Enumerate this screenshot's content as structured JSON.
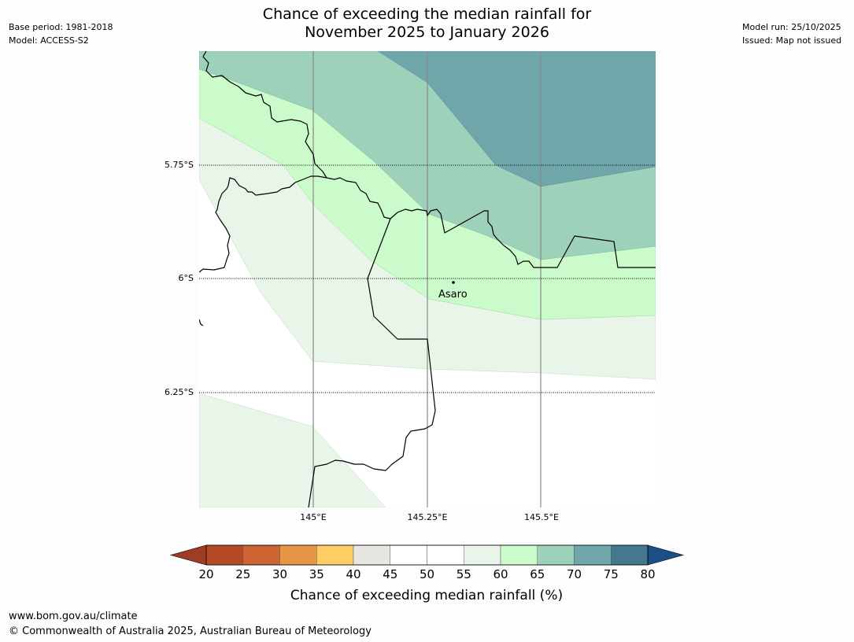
{
  "header": {
    "title_line1": "Chance of exceeding the median rainfall for",
    "title_line2": "November 2025 to January 2026",
    "base_period": "Base period: 1981-2018",
    "model": "Model: ACCESS-S2",
    "model_run": "Model run: 25/10/2025",
    "issued": "Issued: Map not issued"
  },
  "map": {
    "lat_labels": [
      "5.75°S",
      "6°S",
      "6.25°S"
    ],
    "lon_labels": [
      "145°E",
      "145.25°E",
      "145.5°E"
    ],
    "place_name": "Asaro",
    "zone_colors": {
      "55-60": "#e9f5e9",
      "60-65": "#cbfbcb",
      "65-70": "#9ed1ba",
      "70-75": "#6fa6a9"
    }
  },
  "colorbar": {
    "ticks": [
      "20",
      "25",
      "30",
      "35",
      "40",
      "45",
      "50",
      "55",
      "60",
      "65",
      "70",
      "75",
      "80"
    ],
    "colors": [
      "#9e3c25",
      "#b44b26",
      "#cd6432",
      "#e69646",
      "#ffcd64",
      "#e8e6e1",
      "#ffffff",
      "#ffffff",
      "#e9f5e9",
      "#cbfbcb",
      "#9ed1ba",
      "#6fa6a9",
      "#43788f",
      "#1d4f87"
    ],
    "label": "Chance of exceeding median rainfall (%)"
  },
  "footer": {
    "url": "www.bom.gov.au/climate",
    "copyright": "© Commonwealth of Australia 2025, Australian Bureau of Meteorology"
  }
}
